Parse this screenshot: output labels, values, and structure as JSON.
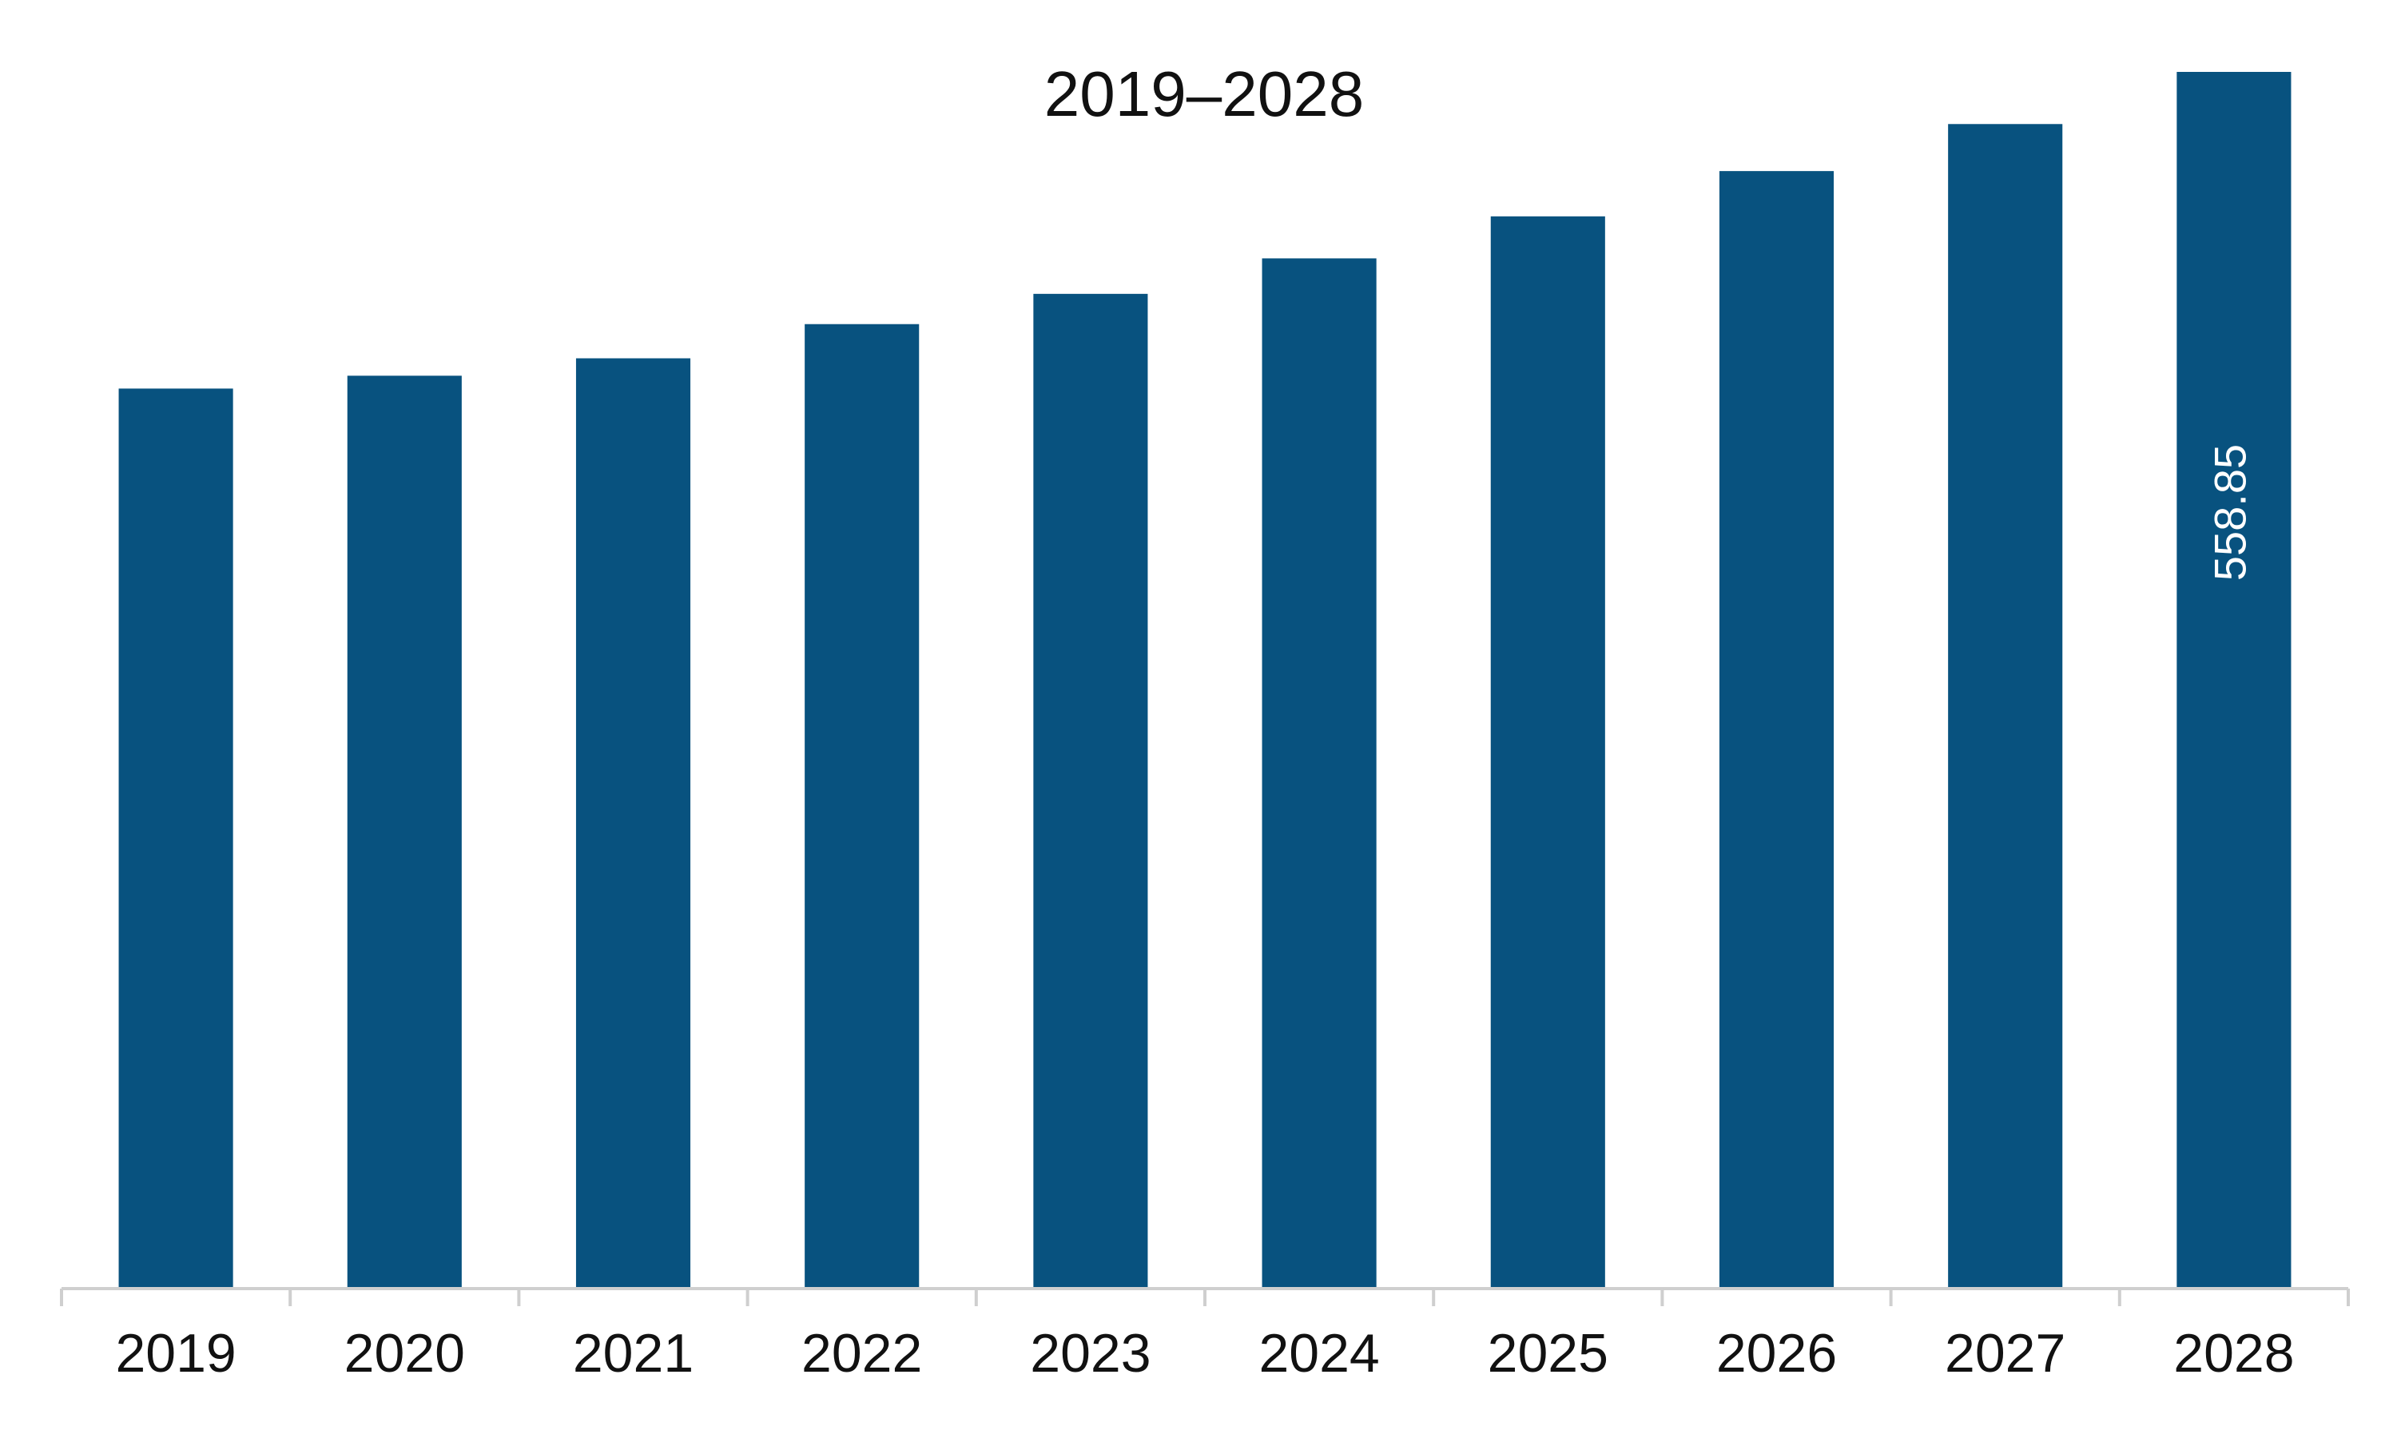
{
  "chart_data": {
    "type": "bar",
    "title": "2019–2028",
    "xlabel": "",
    "ylabel": "",
    "categories": [
      "2019",
      "2020",
      "2021",
      "2022",
      "2023",
      "2024",
      "2025",
      "2026",
      "2027",
      "2028"
    ],
    "values": [
      413.4,
      419.3,
      427.3,
      443.0,
      456.9,
      473.2,
      492.5,
      513.3,
      534.9,
      558.85
    ],
    "data_labels": [
      {
        "category": "2028",
        "text": "558.85",
        "orientation": "vertical"
      }
    ],
    "ylim": [
      0,
      600
    ],
    "grid": false,
    "legend": "none",
    "bar_color": "#08527F",
    "axis_color": "#CFCFCF"
  }
}
